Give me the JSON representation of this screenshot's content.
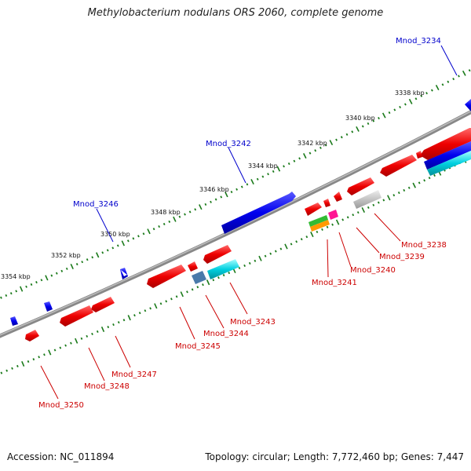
{
  "title": "Methylobacterium nodulans ORS 2060, complete genome",
  "footer": {
    "accession": "Accession: NC_011894",
    "topology": "Topology: circular; Length: 7,772,460 bp; Genes: 7,447"
  },
  "colors": {
    "backbone": "#8a8a8a",
    "forward_label": "#0000cc",
    "reverse_label": "#cc0000",
    "tick": "#1a7a1a"
  },
  "ticks": [
    "3338 kbp",
    "3340 kbp",
    "3342 kbp",
    "3344 kbp",
    "3346 kbp",
    "3348 kbp",
    "3350 kbp",
    "3352 kbp",
    "3354 kbp"
  ],
  "genes_forward": [
    "Mnod_3234",
    "Mnod_3242",
    "Mnod_3246"
  ],
  "genes_reverse": [
    "Mnod_3238",
    "Mnod_3239",
    "Mnod_3240",
    "Mnod_3241",
    "Mnod_3243",
    "Mnod_3244",
    "Mnod_3245",
    "Mnod_3247",
    "Mnod_3248",
    "Mnod_3250"
  ]
}
